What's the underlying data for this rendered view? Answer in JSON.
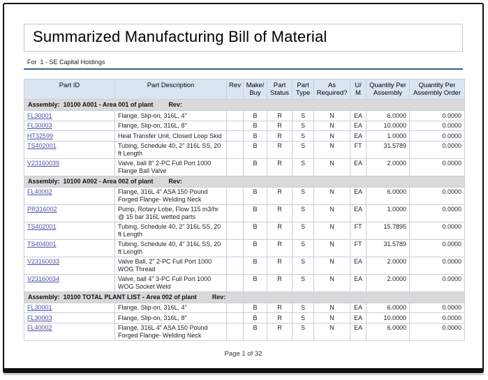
{
  "title": "Summarized Manufacturing Bill of Material",
  "for_line": "For  1 - SE Capital Holdings",
  "footer": {
    "page_text": "Page 1 of 32"
  },
  "colors": {
    "header_bg": "#dbe5f1",
    "group_row_bg": "#d9d9d9",
    "link": "#4a51a5",
    "rule_blue": "#366092",
    "frame_border": "#111111",
    "cell_border": "#c6cfdb",
    "title_border": "#c6c6c6"
  },
  "table": {
    "columns": [
      {
        "key": "part_id",
        "label": "Part ID"
      },
      {
        "key": "description",
        "label": "Part Description"
      },
      {
        "key": "rev",
        "label": "Rev"
      },
      {
        "key": "make_buy",
        "label": "Make/\nBuy"
      },
      {
        "key": "part_status",
        "label": "Part\nStatus"
      },
      {
        "key": "part_type",
        "label": "Part\nType"
      },
      {
        "key": "as_required",
        "label": "As\nRequired?"
      },
      {
        "key": "uom",
        "label": "U/\nM"
      },
      {
        "key": "qty_per_assembly",
        "label": "Quantity Per\nAssembly"
      },
      {
        "key": "qty_per_assembly_order",
        "label": "Quantity Per\nAssembly Order"
      }
    ],
    "groups": [
      {
        "label": "Assembly:  10100 A001 - Area 001 of plant",
        "rev_label": "Rev:",
        "rows": [
          {
            "part_id": "FL30001",
            "description": "Flange, Slip-on, 316L, 4\"",
            "rev": "",
            "make_buy": "B",
            "part_status": "R",
            "part_type": "S",
            "as_required": "N",
            "uom": "EA",
            "qty_per_assembly": "6.0000",
            "qty_per_assembly_order": "0.0000"
          },
          {
            "part_id": "FL30003",
            "description": "Flange, Slip-on, 316L, 8\"",
            "rev": "",
            "make_buy": "B",
            "part_status": "R",
            "part_type": "S",
            "as_required": "N",
            "uom": "EA",
            "qty_per_assembly": "10.0000",
            "qty_per_assembly_order": "0.0000"
          },
          {
            "part_id": "HT32599",
            "description": "Heat Transfer Unit, Closed Loop Skid",
            "rev": "",
            "make_buy": "B",
            "part_status": "R",
            "part_type": "S",
            "as_required": "N",
            "uom": "EA",
            "qty_per_assembly": "1.0000",
            "qty_per_assembly_order": "0.0000"
          },
          {
            "part_id": "TS402001",
            "description": "Tubing, Schedule 40, 2\" 316L SS, 20 ft Length",
            "rev": "",
            "make_buy": "B",
            "part_status": "R",
            "part_type": "S",
            "as_required": "N",
            "uom": "FT",
            "qty_per_assembly": "31.5789",
            "qty_per_assembly_order": "0.0000"
          },
          {
            "part_id": "V23160039",
            "description": "Valve, ball 8\" 2-PC Full Port 1000 Flange Ball Valve",
            "rev": "",
            "make_buy": "B",
            "part_status": "R",
            "part_type": "S",
            "as_required": "N",
            "uom": "EA",
            "qty_per_assembly": "2.0000",
            "qty_per_assembly_order": "0.0000"
          }
        ]
      },
      {
        "label": "Assembly:  10100 A002 - Area 002 of plant",
        "rev_label": "Rev:",
        "rows": [
          {
            "part_id": "FL40002",
            "description": "Flange, 316L 4\" ASA 150 Pound Forged Flange- Welding Neck",
            "rev": "",
            "make_buy": "B",
            "part_status": "R",
            "part_type": "S",
            "as_required": "N",
            "uom": "EA",
            "qty_per_assembly": "6.0000",
            "qty_per_assembly_order": "0.0000"
          },
          {
            "part_id": "PR316002",
            "description": "Pump, Rotary Lobe, Flow 115 m3/hr @ 15 bar 316L wetted parts",
            "rev": "",
            "make_buy": "B",
            "part_status": "R",
            "part_type": "S",
            "as_required": "N",
            "uom": "EA",
            "qty_per_assembly": "1.0000",
            "qty_per_assembly_order": "0.0000"
          },
          {
            "part_id": "TS402001",
            "description": "Tubing, Schedule 40, 2\" 316L SS, 20 ft Length",
            "rev": "",
            "make_buy": "B",
            "part_status": "R",
            "part_type": "S",
            "as_required": "N",
            "uom": "FT",
            "qty_per_assembly": "15.7895",
            "qty_per_assembly_order": "0.0000"
          },
          {
            "part_id": "TS404001",
            "description": "Tubing, Schedule 40, 4\" 316L SS, 20 ft Length",
            "rev": "",
            "make_buy": "B",
            "part_status": "R",
            "part_type": "S",
            "as_required": "N",
            "uom": "FT",
            "qty_per_assembly": "31.5789",
            "qty_per_assembly_order": "0.0000"
          },
          {
            "part_id": "V23160033",
            "description": "Valve Ball, 2\" 2-PC Full Port 1000 WOG Thread",
            "rev": "",
            "make_buy": "B",
            "part_status": "R",
            "part_type": "S",
            "as_required": "N",
            "uom": "EA",
            "qty_per_assembly": "2.0000",
            "qty_per_assembly_order": "0.0000"
          },
          {
            "part_id": "V23160034",
            "description": "Valve, ball 4\" 3-PC Full Port 1000 WOG Socket Weld",
            "rev": "",
            "make_buy": "B",
            "part_status": "R",
            "part_type": "S",
            "as_required": "N",
            "uom": "EA",
            "qty_per_assembly": "2.0000",
            "qty_per_assembly_order": "0.0000"
          }
        ]
      },
      {
        "label": "Assembly:  10100 TOTAL PLANT LIST - Area 002 of plant",
        "rev_label": "Rev:",
        "rows": [
          {
            "part_id": "FL30001",
            "description": "Flange, Slip-on, 316L, 4\"",
            "rev": "",
            "make_buy": "B",
            "part_status": "R",
            "part_type": "S",
            "as_required": "N",
            "uom": "EA",
            "qty_per_assembly": "6.0000",
            "qty_per_assembly_order": "0.0000"
          },
          {
            "part_id": "FL30003",
            "description": "Flange, Slip-on, 316L, 8\"",
            "rev": "",
            "make_buy": "B",
            "part_status": "R",
            "part_type": "S",
            "as_required": "N",
            "uom": "EA",
            "qty_per_assembly": "10.0000",
            "qty_per_assembly_order": "0.0000"
          },
          {
            "part_id": "FL40002",
            "description": "Flange, 316L 4\" ASA 150 Pound Forged Flange- Welding Neck",
            "rev": "",
            "make_buy": "B",
            "part_status": "R",
            "part_type": "S",
            "as_required": "N",
            "uom": "EA",
            "qty_per_assembly": "6.0000",
            "qty_per_assembly_order": "0.0000"
          }
        ]
      }
    ]
  }
}
